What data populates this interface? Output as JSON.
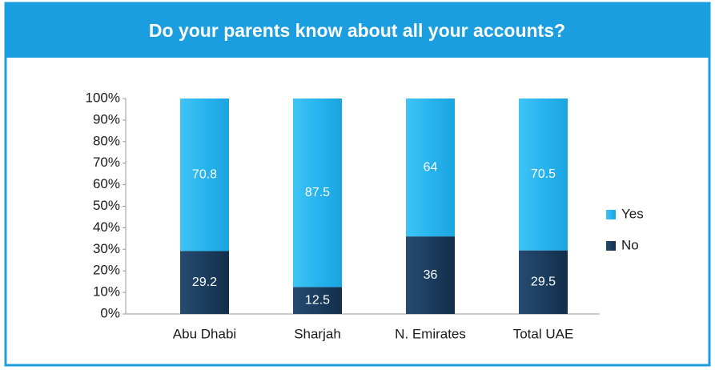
{
  "chart_data": {
    "type": "bar",
    "stacked": true,
    "title": "Do your parents know about all your accounts?",
    "categories": [
      "Abu Dhabi",
      "Sharjah",
      "N. Emirates",
      "Total UAE"
    ],
    "series": [
      {
        "name": "No",
        "color": "#1c3d5f",
        "values": [
          29.2,
          12.5,
          36,
          29.5
        ]
      },
      {
        "name": "Yes",
        "color": "#27b4ee",
        "values": [
          70.8,
          87.5,
          64,
          70.5
        ]
      }
    ],
    "ylim": [
      0,
      100
    ],
    "yticks": [
      {
        "value": 0,
        "label": "0%"
      },
      {
        "value": 10,
        "label": "10%"
      },
      {
        "value": 20,
        "label": "20%"
      },
      {
        "value": 30,
        "label": "30%"
      },
      {
        "value": 40,
        "label": "40%"
      },
      {
        "value": 50,
        "label": "50%"
      },
      {
        "value": 60,
        "label": "60%"
      },
      {
        "value": 70,
        "label": "70%"
      },
      {
        "value": 80,
        "label": "80%"
      },
      {
        "value": 90,
        "label": "90%"
      },
      {
        "value": 100,
        "label": "100%"
      }
    ],
    "legend": "right"
  }
}
